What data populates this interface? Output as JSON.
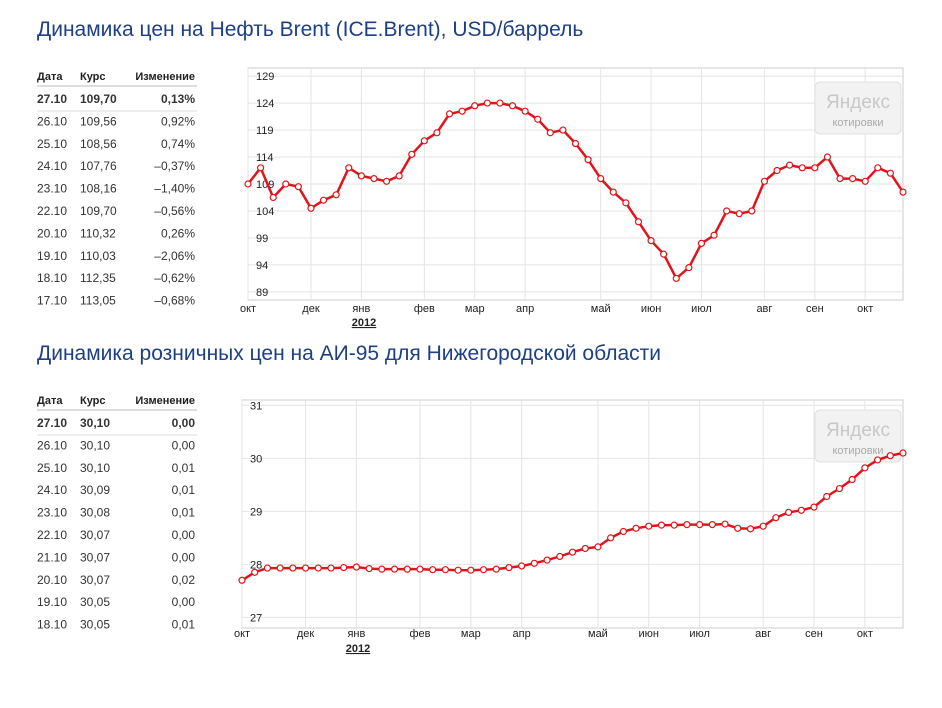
{
  "chart_data": [
    {
      "type": "line",
      "title": "Динамика цен на Нефть Brent (ICE.Brent), USD/баррель",
      "categories": [
        "окт",
        null,
        null,
        null,
        null,
        "дек",
        null,
        null,
        null,
        "янв",
        null,
        null,
        null,
        null,
        "фев",
        null,
        null,
        null,
        "мар",
        null,
        null,
        null,
        "апр",
        null,
        null,
        null,
        null,
        null,
        "май",
        null,
        null,
        null,
        "июн",
        null,
        null,
        null,
        "июл",
        null,
        null,
        null,
        null,
        "авг",
        null,
        null,
        null,
        "сен",
        null,
        null,
        null,
        "окт",
        null,
        null,
        null
      ],
      "year_label": "2012",
      "values": [
        109.0,
        112.0,
        106.5,
        109.0,
        108.5,
        104.5,
        106.0,
        107.0,
        112.0,
        110.5,
        110.0,
        109.5,
        110.5,
        114.5,
        117.0,
        118.5,
        122.0,
        122.5,
        123.5,
        124.0,
        124.0,
        123.5,
        122.5,
        121.0,
        118.5,
        119.0,
        116.5,
        113.5,
        110.0,
        107.5,
        105.5,
        102.0,
        98.5,
        96.0,
        91.5,
        93.5,
        98.0,
        99.5,
        104.0,
        103.5,
        104.0,
        109.5,
        111.5,
        112.5,
        112.0,
        112.0,
        114.0,
        110.0,
        110.0,
        109.5,
        112.0,
        111.0,
        107.5
      ],
      "color": "#e2141b",
      "ylim": [
        87.5,
        130.5
      ],
      "yticks": [
        89,
        94,
        99,
        104,
        109,
        114,
        119,
        124,
        129
      ],
      "grid": true
    },
    {
      "type": "line",
      "title": "Динамика розничных цен на АИ-95 для Нижегородской области",
      "categories": [
        "окт",
        null,
        null,
        null,
        null,
        "дек",
        null,
        null,
        null,
        "янв",
        null,
        null,
        null,
        null,
        "фев",
        null,
        null,
        null,
        "мар",
        null,
        null,
        null,
        "апр",
        null,
        null,
        null,
        null,
        null,
        "май",
        null,
        null,
        null,
        "июн",
        null,
        null,
        null,
        "июл",
        null,
        null,
        null,
        null,
        "авг",
        null,
        null,
        null,
        "сен",
        null,
        null,
        null,
        "окт",
        null,
        null,
        null
      ],
      "year_label": "2012",
      "values": [
        27.7,
        27.85,
        27.93,
        27.93,
        27.93,
        27.93,
        27.93,
        27.93,
        27.94,
        27.95,
        27.92,
        27.91,
        27.91,
        27.91,
        27.91,
        27.9,
        27.9,
        27.89,
        27.89,
        27.9,
        27.91,
        27.94,
        27.97,
        28.02,
        28.08,
        28.15,
        28.23,
        28.3,
        28.33,
        28.5,
        28.62,
        28.68,
        28.72,
        28.74,
        28.74,
        28.75,
        28.75,
        28.75,
        28.76,
        28.68,
        28.67,
        28.72,
        28.88,
        28.98,
        29.02,
        29.08,
        29.28,
        29.43,
        29.6,
        29.82,
        29.97,
        30.05,
        30.1
      ],
      "color": "#e2141b",
      "ylim": [
        26.8,
        31.1
      ],
      "yticks": [
        27,
        28,
        29,
        30,
        31
      ],
      "grid": true
    }
  ],
  "tables": [
    {
      "columns": [
        "Дата",
        "Курс",
        "Изменение"
      ],
      "rows": [
        [
          "27.10",
          "109,70",
          "0,13%"
        ],
        [
          "26.10",
          "109,56",
          "0,92%"
        ],
        [
          "25.10",
          "108,56",
          "0,74%"
        ],
        [
          "24.10",
          "107,76",
          "–0,37%"
        ],
        [
          "23.10",
          "108,16",
          "–1,40%"
        ],
        [
          "22.10",
          "109,70",
          "–0,56%"
        ],
        [
          "20.10",
          "110,32",
          "0,26%"
        ],
        [
          "19.10",
          "110,03",
          "–2,06%"
        ],
        [
          "18.10",
          "112,35",
          "–0,62%"
        ],
        [
          "17.10",
          "113,05",
          "–0,68%"
        ]
      ]
    },
    {
      "columns": [
        "Дата",
        "Курс",
        "Изменение"
      ],
      "rows": [
        [
          "27.10",
          "30,10",
          "0,00"
        ],
        [
          "26.10",
          "30,10",
          "0,00"
        ],
        [
          "25.10",
          "30,10",
          "0,01"
        ],
        [
          "24.10",
          "30,09",
          "0,01"
        ],
        [
          "23.10",
          "30,08",
          "0,01"
        ],
        [
          "22.10",
          "30,07",
          "0,00"
        ],
        [
          "21.10",
          "30,07",
          "0,00"
        ],
        [
          "20.10",
          "30,07",
          "0,02"
        ],
        [
          "19.10",
          "30,05",
          "0,00"
        ],
        [
          "18.10",
          "30,05",
          "0,01"
        ]
      ]
    }
  ],
  "watermark": {
    "brand": "Яндекс",
    "caption": "котировки"
  }
}
